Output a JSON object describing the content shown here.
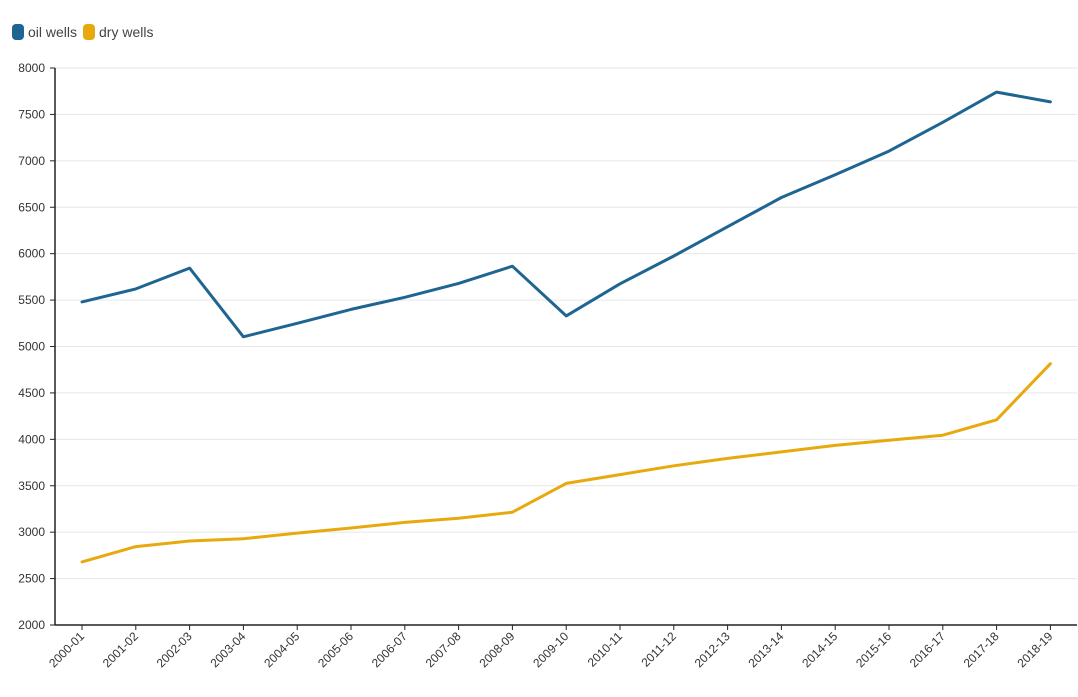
{
  "chart_data": {
    "type": "line",
    "title": "",
    "xlabel": "",
    "ylabel": "",
    "categories": [
      "2000-01",
      "2001-02",
      "2002-03",
      "2003-04",
      "2004-05",
      "2005-06",
      "2006-07",
      "2007-08",
      "2008-09",
      "2009-10",
      "2010-11",
      "2011-12",
      "2012-13",
      "2013-14",
      "2014-15",
      "2015-16",
      "2016-17",
      "2017-18",
      "2018-19"
    ],
    "ylim": [
      2000,
      8000
    ],
    "yticks": [
      2000,
      2500,
      3000,
      3500,
      4000,
      4500,
      5000,
      5500,
      6000,
      6500,
      7000,
      7500,
      8000
    ],
    "grid": "horizontal",
    "legend_position": "top-left",
    "series": [
      {
        "name": "oil wells",
        "color": "#1f6591",
        "values": [
          5480,
          5620,
          5845,
          5105,
          5250,
          5400,
          5530,
          5680,
          5865,
          5330,
          5675,
          5975,
          6290,
          6605,
          6850,
          7105,
          7415,
          7740,
          7635
        ]
      },
      {
        "name": "dry wells",
        "color": "#e8a90e",
        "values": [
          2680,
          2845,
          2905,
          2930,
          2990,
          3045,
          3105,
          3150,
          3215,
          3525,
          3620,
          3715,
          3795,
          3865,
          3935,
          3990,
          4045,
          4210,
          4815
        ]
      }
    ]
  }
}
